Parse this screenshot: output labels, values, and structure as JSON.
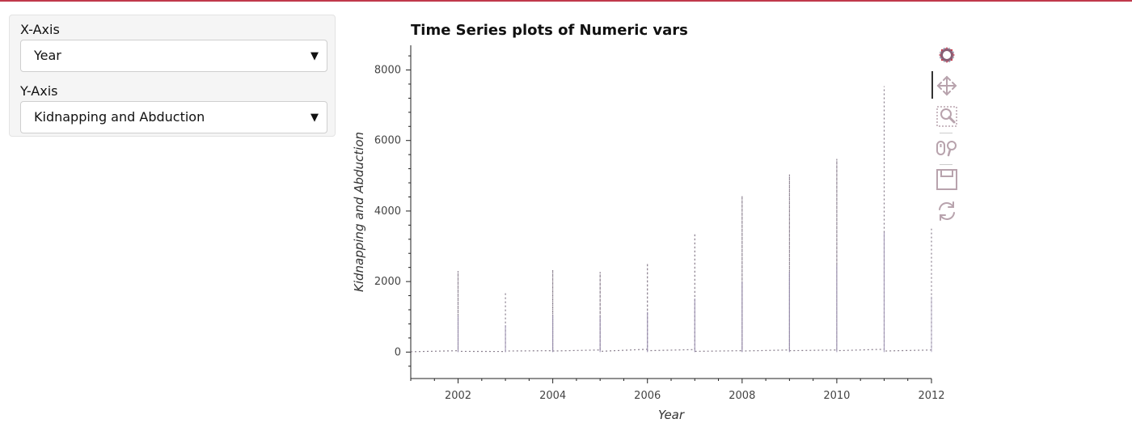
{
  "controls": {
    "x_axis": {
      "label": "X-Axis",
      "selected": "Year"
    },
    "y_axis": {
      "label": "Y-Axis",
      "selected": "Kidnapping and Abduction"
    }
  },
  "colors": {
    "top_border": "#c0394b",
    "series_line": "#8a7f8e",
    "axis": "#222222",
    "toolbar_icon": "#b8a3ad"
  },
  "toolbar": {
    "tools": [
      "bokeh-logo-icon",
      "pan-icon",
      "box-zoom-icon",
      "wheel-zoom-icon",
      "save-icon",
      "reset-icon"
    ],
    "active": "pan-icon"
  },
  "chart_data": {
    "type": "line",
    "title": "Time Series plots of Numeric vars",
    "xlabel": "Year",
    "ylabel": "Kidnapping and Abduction",
    "xlim": [
      2001,
      2012
    ],
    "ylim": [
      -750,
      8700
    ],
    "xticks": [
      2002,
      2004,
      2006,
      2008,
      2010,
      2012
    ],
    "yticks": [
      0,
      2000,
      4000,
      6000,
      8000
    ],
    "grid": false,
    "line_style": "dotted",
    "series": [
      {
        "x": [
          2001,
          2002,
          2002,
          2002,
          2003,
          2003,
          2003,
          2004,
          2004,
          2004,
          2005,
          2005,
          2005,
          2006,
          2006,
          2006,
          2007,
          2007,
          2007,
          2008,
          2008,
          2008,
          2009,
          2009,
          2009,
          2010,
          2010,
          2010,
          2011,
          2011,
          2011,
          2012,
          2012
        ],
        "values": [
          10,
          40,
          2300,
          20,
          15,
          1700,
          30,
          40,
          2330,
          30,
          60,
          2270,
          20,
          80,
          2520,
          40,
          70,
          3370,
          20,
          40,
          4430,
          30,
          60,
          5040,
          40,
          60,
          5480,
          40,
          80,
          7540,
          30,
          60,
          3500
        ]
      }
    ]
  }
}
